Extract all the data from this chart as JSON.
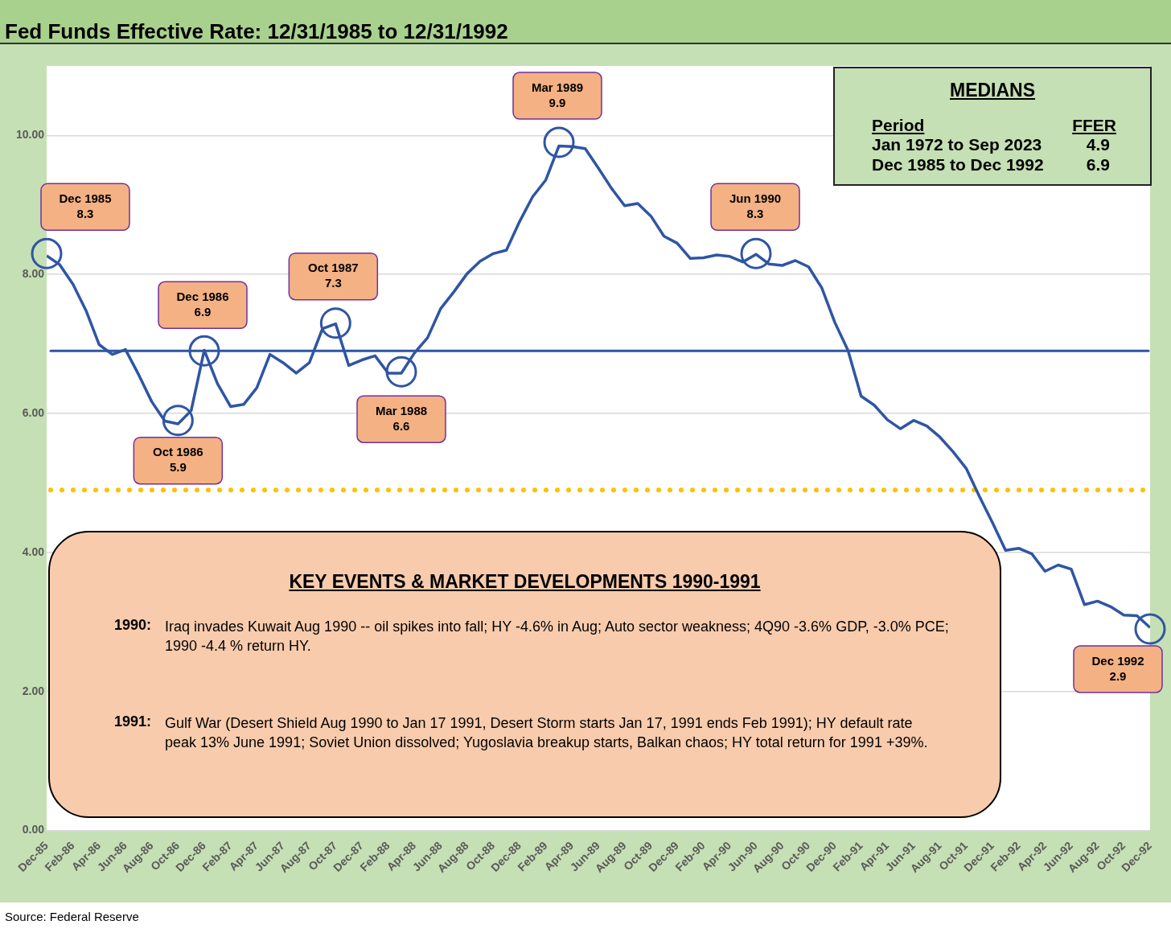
{
  "chart_data": {
    "type": "line",
    "title": "Fed Funds Effective Rate: 12/31/1985 to 12/31/1992",
    "x": [
      "1985-12",
      "1986-01",
      "1986-02",
      "1986-03",
      "1986-04",
      "1986-05",
      "1986-06",
      "1986-07",
      "1986-08",
      "1986-09",
      "1986-10",
      "1986-11",
      "1986-12",
      "1987-01",
      "1987-02",
      "1987-03",
      "1987-04",
      "1987-05",
      "1987-06",
      "1987-07",
      "1987-08",
      "1987-09",
      "1987-10",
      "1987-11",
      "1987-12",
      "1988-01",
      "1988-02",
      "1988-03",
      "1988-04",
      "1988-05",
      "1988-06",
      "1988-07",
      "1988-08",
      "1988-09",
      "1988-10",
      "1988-11",
      "1988-12",
      "1989-01",
      "1989-02",
      "1989-03",
      "1989-04",
      "1989-05",
      "1989-06",
      "1989-07",
      "1989-08",
      "1989-09",
      "1989-10",
      "1989-11",
      "1989-12",
      "1990-01",
      "1990-02",
      "1990-03",
      "1990-04",
      "1990-05",
      "1990-06",
      "1990-07",
      "1990-08",
      "1990-09",
      "1990-10",
      "1990-11",
      "1990-12",
      "1991-01",
      "1991-02",
      "1991-03",
      "1991-04",
      "1991-05",
      "1991-06",
      "1991-07",
      "1991-08",
      "1991-09",
      "1991-10",
      "1991-11",
      "1991-12",
      "1992-01",
      "1992-02",
      "1992-03",
      "1992-04",
      "1992-05",
      "1992-06",
      "1992-07",
      "1992-08",
      "1992-09",
      "1992-10",
      "1992-11",
      "1992-12"
    ],
    "series": [
      {
        "color": "#2f55a4",
        "values": [
          8.27,
          8.14,
          7.86,
          7.48,
          6.99,
          6.85,
          6.92,
          6.56,
          6.17,
          5.89,
          5.85,
          6.04,
          6.91,
          6.43,
          6.1,
          6.13,
          6.37,
          6.85,
          6.73,
          6.58,
          6.73,
          7.22,
          7.29,
          6.69,
          6.77,
          6.83,
          6.58,
          6.58,
          6.87,
          7.09,
          7.51,
          7.75,
          8.01,
          8.19,
          8.3,
          8.35,
          8.76,
          9.12,
          9.36,
          9.85,
          9.84,
          9.81,
          9.53,
          9.24,
          8.99,
          9.02,
          8.84,
          8.55,
          8.45,
          8.23,
          8.24,
          8.28,
          8.26,
          8.18,
          8.29,
          8.15,
          8.13,
          8.2,
          8.11,
          7.81,
          7.31,
          6.91,
          6.25,
          6.12,
          5.91,
          5.78,
          5.9,
          5.82,
          5.66,
          5.45,
          5.21,
          4.81,
          4.43,
          4.03,
          4.06,
          3.98,
          3.73,
          3.82,
          3.76,
          3.25,
          3.3,
          3.22,
          3.1,
          3.09,
          2.92
        ]
      }
    ],
    "xlim": [
      "1985-12",
      "1992-12"
    ],
    "xticks": [
      {
        "value": "1985-12",
        "label": "Dec-85"
      },
      {
        "value": "1986-02",
        "label": "Feb-86"
      },
      {
        "value": "1986-04",
        "label": "Apr-86"
      },
      {
        "value": "1986-06",
        "label": "Jun-86"
      },
      {
        "value": "1986-08",
        "label": "Aug-86"
      },
      {
        "value": "1986-10",
        "label": "Oct-86"
      },
      {
        "value": "1986-12",
        "label": "Dec-86"
      },
      {
        "value": "1987-02",
        "label": "Feb-87"
      },
      {
        "value": "1987-04",
        "label": "Apr-87"
      },
      {
        "value": "1987-06",
        "label": "Jun-87"
      },
      {
        "value": "1987-08",
        "label": "Aug-87"
      },
      {
        "value": "1987-10",
        "label": "Oct-87"
      },
      {
        "value": "1987-12",
        "label": "Dec-87"
      },
      {
        "value": "1988-02",
        "label": "Feb-88"
      },
      {
        "value": "1988-04",
        "label": "Apr-88"
      },
      {
        "value": "1988-06",
        "label": "Jun-88"
      },
      {
        "value": "1988-08",
        "label": "Aug-88"
      },
      {
        "value": "1988-10",
        "label": "Oct-88"
      },
      {
        "value": "1988-12",
        "label": "Dec-88"
      },
      {
        "value": "1989-02",
        "label": "Feb-89"
      },
      {
        "value": "1989-04",
        "label": "Apr-89"
      },
      {
        "value": "1989-06",
        "label": "Jun-89"
      },
      {
        "value": "1989-08",
        "label": "Aug-89"
      },
      {
        "value": "1989-10",
        "label": "Oct-89"
      },
      {
        "value": "1989-12",
        "label": "Dec-89"
      },
      {
        "value": "1990-02",
        "label": "Feb-90"
      },
      {
        "value": "1990-04",
        "label": "Apr-90"
      },
      {
        "value": "1990-06",
        "label": "Jun-90"
      },
      {
        "value": "1990-08",
        "label": "Aug-90"
      },
      {
        "value": "1990-10",
        "label": "Oct-90"
      },
      {
        "value": "1990-12",
        "label": "Dec-90"
      },
      {
        "value": "1991-02",
        "label": "Feb-91"
      },
      {
        "value": "1991-04",
        "label": "Apr-91"
      },
      {
        "value": "1991-06",
        "label": "Jun-91"
      },
      {
        "value": "1991-08",
        "label": "Aug-91"
      },
      {
        "value": "1991-10",
        "label": "Oct-91"
      },
      {
        "value": "1991-12",
        "label": "Dec-91"
      },
      {
        "value": "1992-02",
        "label": "Feb-92"
      },
      {
        "value": "1992-04",
        "label": "Apr-92"
      },
      {
        "value": "1992-06",
        "label": "Jun-92"
      },
      {
        "value": "1992-08",
        "label": "Aug-92"
      },
      {
        "value": "1992-10",
        "label": "Oct-92"
      },
      {
        "value": "1992-12",
        "label": "Dec-92"
      }
    ],
    "ylim": [
      0,
      11
    ],
    "yticks": [
      {
        "value": 0,
        "label": "0.00"
      },
      {
        "value": 2,
        "label": "2.00"
      },
      {
        "value": 4,
        "label": "4.00"
      },
      {
        "value": 6,
        "label": "6.00"
      },
      {
        "value": 8,
        "label": "8.00"
      },
      {
        "value": 10,
        "label": "10.00"
      }
    ],
    "grid": "y",
    "legend": false,
    "marker": "none",
    "line_style": "solid",
    "ref_lines": [
      {
        "axis": "y",
        "value": 6.9,
        "color": "#2f55a4",
        "line_style": "solid"
      },
      {
        "axis": "y",
        "value": 4.9,
        "color": "#ffc000",
        "line_style": "dotted"
      }
    ],
    "annotations": [
      "MEDIANS",
      "Period",
      "FFER",
      "Jan 1972 to Sep 2023",
      "4.9",
      "Dec 1985 to Dec 1992",
      "6.9",
      "KEY EVENTS & MARKET DEVELOPMENTS 1990-1991",
      "1990:",
      "Iraq invades Kuwait Aug 1990 -- oil spikes into fall; HY -4.6% in Aug; Auto sector weakness; 4Q90 -3.6% GDP, -3.0% PCE; 1990  -4.4 % return HY.",
      "1991:",
      "Gulf War (Desert Shield Aug 1990 to Jan 17 1991, Desert Storm starts Jan 17, 1991 ends Feb 1991); HY default rate peak 13% June 1991; Soviet Union dissolved; Yugoslavia breakup starts, Balkan chaos; HY total return for 1991 +39%.",
      {
        "text": "Dec 1985\n8.3",
        "x": "1985-12",
        "y": 8.3
      },
      {
        "text": "Oct 1986\n5.9",
        "x": "1986-10",
        "y": 5.9
      },
      {
        "text": "Dec 1986\n6.9",
        "x": "1986-12",
        "y": 6.9
      },
      {
        "text": "Oct 1987\n7.3",
        "x": "1987-10",
        "y": 7.3
      },
      {
        "text": "Mar 1988\n6.6",
        "x": "1988-03",
        "y": 6.6
      },
      {
        "text": "Mar 1989\n9.9",
        "x": "1989-03",
        "y": 9.9
      },
      {
        "text": "Jun 1990\n8.3",
        "x": "1990-06",
        "y": 8.3
      },
      {
        "text": "Dec 1992\n2.9",
        "x": "1992-12",
        "y": 2.9
      },
      "Source: Federal Reserve"
    ]
  }
}
